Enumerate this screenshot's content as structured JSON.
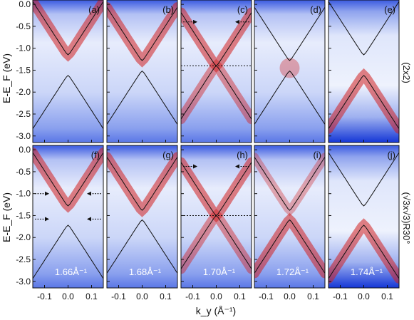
{
  "chart_data": {
    "type": "heatmap",
    "title": "",
    "ylabel": "E-E_F (eV)",
    "xlabel": "k_y (Å⁻¹)",
    "xlim": [
      -0.15,
      0.15
    ],
    "ylim": [
      -3.15,
      0.1
    ],
    "x_ticks": [
      "-0.1",
      "0.0",
      "0.1"
    ],
    "x_tick_values": [
      -0.1,
      0.0,
      0.1
    ],
    "y_ticks": [
      "0.0",
      "-0.5",
      "-1.0",
      "-1.5",
      "-2.0",
      "-2.5",
      "-3.0"
    ],
    "y_tick_values": [
      0.0,
      -0.5,
      -1.0,
      -1.5,
      -2.0,
      -2.5,
      -3.0
    ],
    "colormap": [
      "#1436d6",
      "#ffffff",
      "#d21f1f"
    ],
    "row_labels": [
      "(2x2)",
      "(√3x√3)R30°"
    ],
    "panels": [
      {
        "label": "(a)",
        "row": 0,
        "col": 0,
        "kval": "",
        "band_gap": [
          -1.15,
          -1.62
        ],
        "crossing": null,
        "intensity": "upper-left",
        "arrows": [],
        "dotted": null
      },
      {
        "label": "(b)",
        "row": 0,
        "col": 1,
        "kval": "",
        "band_gap": [
          -1.28,
          -1.52
        ],
        "crossing": null,
        "intensity": "upper",
        "arrows": [],
        "dotted": null
      },
      {
        "label": "(c)",
        "row": 0,
        "col": 2,
        "kval": "",
        "band_gap": [
          -1.4,
          -1.4
        ],
        "crossing": -1.4,
        "intensity": "cross",
        "arrows": [
          -0.4
        ],
        "dotted": -1.4
      },
      {
        "label": "(d)",
        "row": 0,
        "col": 3,
        "kval": "",
        "band_gap": [
          -1.28,
          -1.52
        ],
        "crossing": null,
        "intensity": "weak",
        "arrows": [],
        "dotted": null
      },
      {
        "label": "(e)",
        "row": 0,
        "col": 4,
        "kval": "",
        "band_gap": [
          -1.15,
          -1.62
        ],
        "crossing": null,
        "intensity": "lower",
        "arrows": [],
        "dotted": null
      },
      {
        "label": "(f)",
        "row": 1,
        "col": 0,
        "kval": "1.66Å⁻¹",
        "band_gap": [
          -1.28,
          -1.72
        ],
        "crossing": null,
        "intensity": "upper-left",
        "arrows": [
          -1.0,
          -1.58
        ],
        "dotted": null
      },
      {
        "label": "(g)",
        "row": 1,
        "col": 1,
        "kval": "1.68Å⁻¹",
        "band_gap": [
          -1.38,
          -1.6
        ],
        "crossing": null,
        "intensity": "upper",
        "arrows": [],
        "dotted": null
      },
      {
        "label": "(h)",
        "row": 1,
        "col": 2,
        "kval": "1.70Å⁻¹",
        "band_gap": [
          -1.5,
          -1.5
        ],
        "crossing": -1.5,
        "intensity": "cross",
        "arrows": [
          -0.38
        ],
        "dotted": -1.5
      },
      {
        "label": "(i)",
        "row": 1,
        "col": 3,
        "kval": "1.72Å⁻¹",
        "band_gap": [
          -1.38,
          -1.6
        ],
        "crossing": null,
        "intensity": "cross-weak",
        "arrows": [],
        "dotted": null
      },
      {
        "label": "(j)",
        "row": 1,
        "col": 4,
        "kval": "1.74Å⁻¹",
        "band_gap": [
          -1.28,
          -1.72
        ],
        "crossing": null,
        "intensity": "lower",
        "arrows": [],
        "dotted": null
      }
    ]
  }
}
